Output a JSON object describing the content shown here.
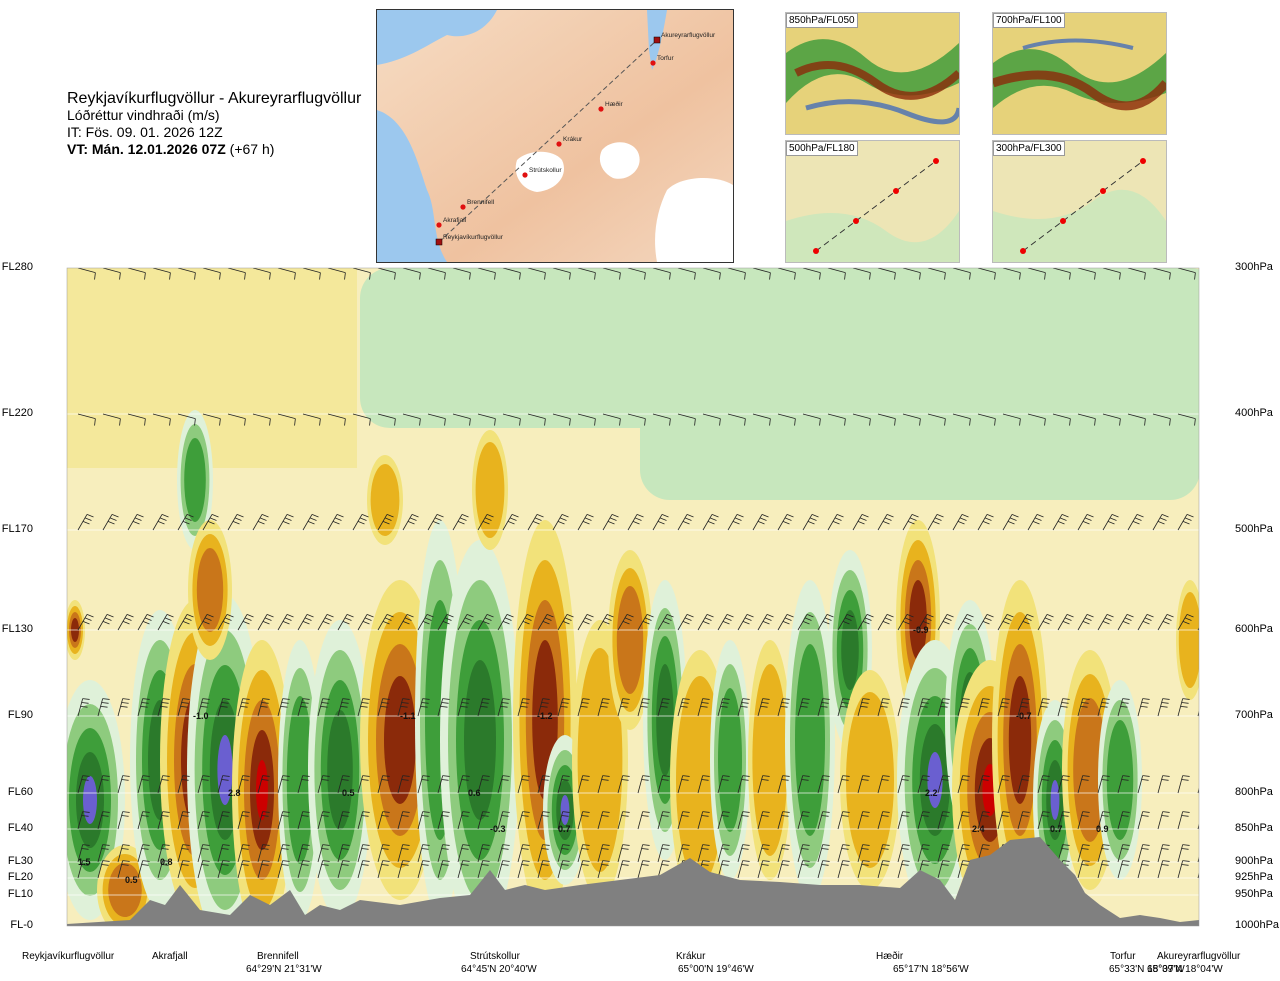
{
  "header": {
    "route": "Reykjavíkurflugvöllur - Akureyrarflugvöllur",
    "parameter": "Lóðréttur vindhraði (m/s)",
    "it": "IT: Fös. 09. 01. 2026 12Z",
    "vt": "VT: Mán. 12.01.2026 07Z",
    "vt_offset": "(+67 h)"
  },
  "map": {
    "waypoints": [
      "Akureyrarflugvöllur",
      "Torfur",
      "Hæðir",
      "Krákur",
      "Strútskollur",
      "Brennifell",
      "Akrafjall",
      "Reykjavíkurflugvöllur"
    ]
  },
  "thumbnails": [
    {
      "label": "850hPa/FL050"
    },
    {
      "label": "700hPa/FL100"
    },
    {
      "label": "500hPa/FL180"
    },
    {
      "label": "300hPa/FL300"
    }
  ],
  "chart_data": {
    "type": "heatmap",
    "title": "Reykjavíkurflugvöllur - Akureyrarflugvöllur",
    "quantity": "Lóðréttur vindhraði (m/s)",
    "left_axis": [
      "FL280",
      "FL220",
      "FL170",
      "FL130",
      "FL90",
      "FL60",
      "FL40",
      "FL30",
      "FL20",
      "FL10",
      "FL-0"
    ],
    "right_axis": [
      "300hPa",
      "400hPa",
      "500hPa",
      "600hPa",
      "700hPa",
      "800hPa",
      "850hPa",
      "900hPa",
      "925hPa",
      "950hPa",
      "1000hPa"
    ],
    "locations": [
      {
        "name": "Reykjavíkurflugvöllur",
        "coord": ""
      },
      {
        "name": "Akrafjall",
        "coord": ""
      },
      {
        "name": "Brennifell",
        "coord": "64°29'N 21°31'W"
      },
      {
        "name": "Strútskollur",
        "coord": "64°45'N 20°40'W"
      },
      {
        "name": "Krákur",
        "coord": "65°00'N 19°46'W"
      },
      {
        "name": "Hæðir",
        "coord": "65°17'N 18°56'W"
      },
      {
        "name": "Torfur",
        "coord": "65°33'N 18°07'W"
      },
      {
        "name": "Akureyrarflugvöllur",
        "coord": "65°39'N 18°04'W"
      }
    ],
    "value_labels": [
      "1.5",
      "0.5",
      "0.8",
      "-1.0",
      "2.8",
      "0.5",
      "-1.1",
      "0.6",
      "-0.3",
      "-1.2",
      "0.7",
      "-0.9",
      "2.2",
      "2.4",
      "-0.7",
      "0.7",
      "0.9"
    ],
    "colors": {
      "strong_down": "#cc0000",
      "mod_down": "#8b2a0a",
      "down_3": "#c9761a",
      "down_2": "#e8b31e",
      "down_1": "#f2e27a",
      "weak": "#f7eebd",
      "up_1": "#dff1d9",
      "up_2": "#c7e7bd",
      "up_3": "#8ecb7e",
      "up_4": "#3e9e3a",
      "strong_up": "#2b7a2b",
      "max_up": "#6a5fd0",
      "terrain": "#808080"
    }
  }
}
